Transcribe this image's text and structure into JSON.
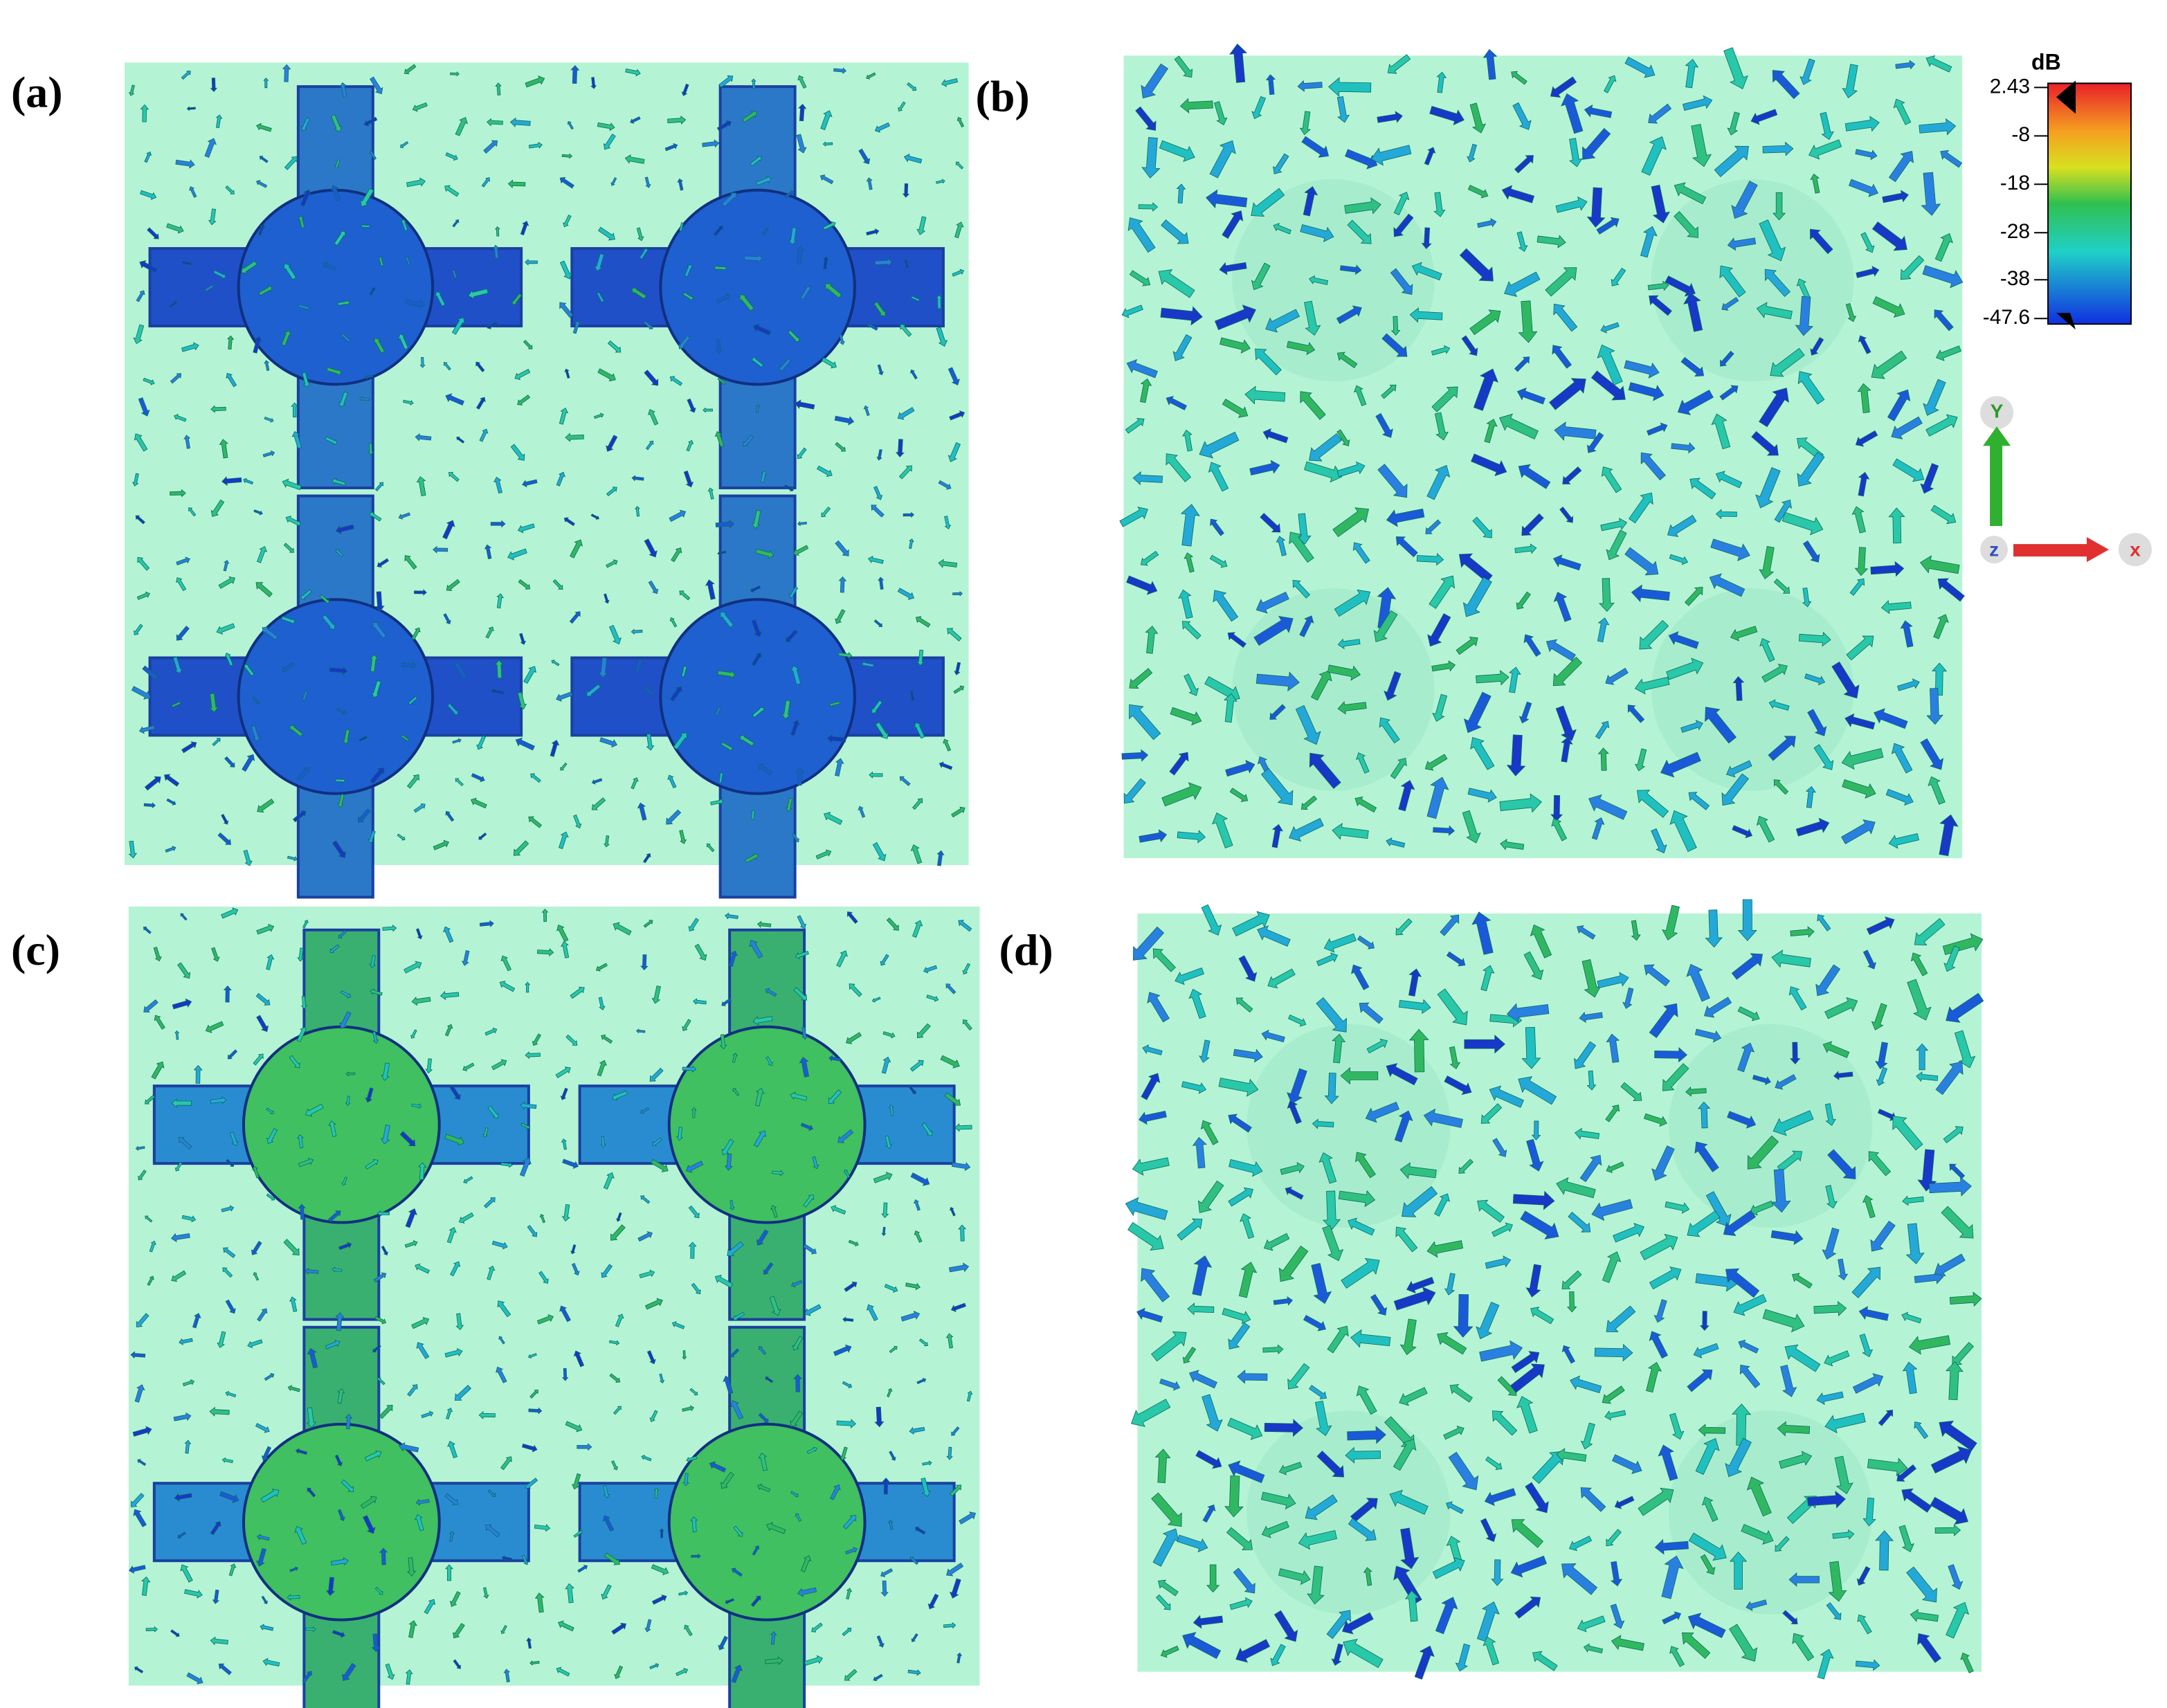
{
  "panels": [
    {
      "label": "(a)"
    },
    {
      "label": "(b)"
    },
    {
      "label": "(c)"
    },
    {
      "label": "(d)"
    }
  ],
  "colorbar": {
    "unit": "dB",
    "ticks": [
      "2.43",
      "-8",
      "-18",
      "-28",
      "-38",
      "-47.6"
    ]
  },
  "axes": {
    "y": "Y",
    "z": "z",
    "x": "x"
  }
}
